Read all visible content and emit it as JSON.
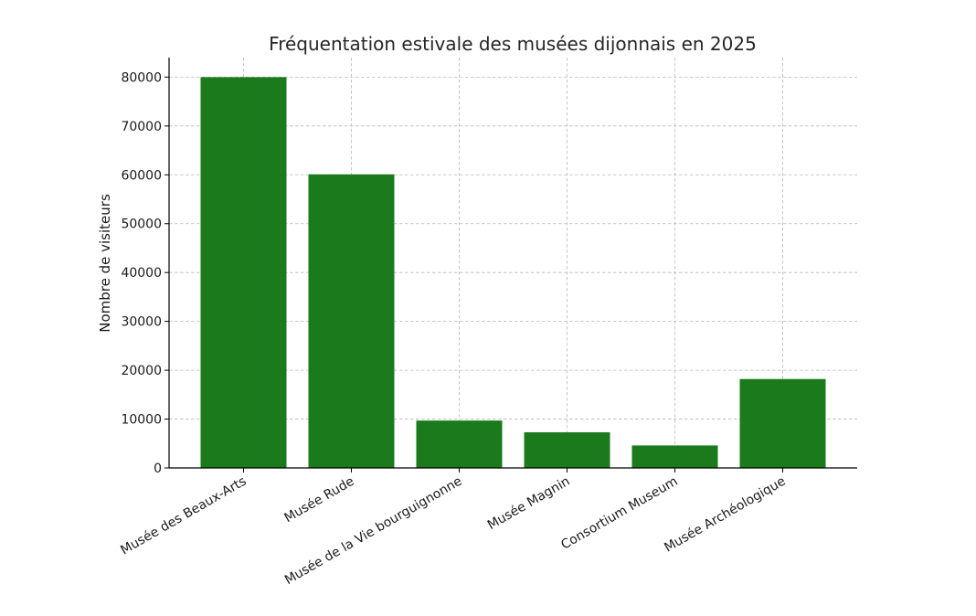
{
  "chart_data": {
    "type": "bar",
    "title": "Fréquentation estivale des musées dijonnais en 2025",
    "xlabel": "",
    "ylabel": "Nombre de visiteurs",
    "categories": [
      "Musée des Beaux-Arts",
      "Musée Rude",
      "Musée de la Vie bourguignonne",
      "Musée Magnin",
      "Consortium Museum",
      "Musée Archéologique"
    ],
    "values": [
      80000,
      60100,
      9700,
      7300,
      4600,
      18200
    ],
    "ylim": [
      0,
      84000
    ],
    "yticks": [
      0,
      10000,
      20000,
      30000,
      40000,
      50000,
      60000,
      70000,
      80000
    ],
    "bar_color": "#1b7a1b",
    "grid": true
  }
}
